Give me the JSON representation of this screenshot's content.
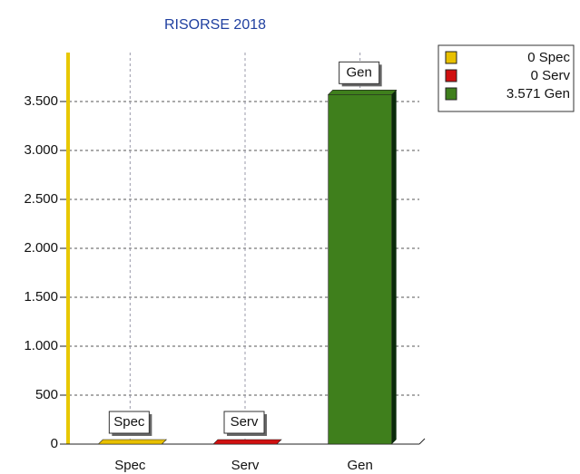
{
  "chart_data": {
    "type": "bar",
    "title": "RISORSE 2018",
    "categories": [
      "Spec",
      "Serv",
      "Gen"
    ],
    "values": [
      0,
      0,
      3571
    ],
    "value_labels": [
      "0",
      "0",
      "3.571"
    ],
    "colors": [
      "#e8c000",
      "#d01010",
      "#3f7f1c"
    ],
    "ylim": [
      0,
      4000
    ],
    "yticks": [
      0,
      500,
      {
        "value": 1000,
        "label": "1.000"
      },
      {
        "value": 1500,
        "label": "1.500"
      },
      {
        "value": 2000,
        "label": "2.000"
      },
      {
        "value": 2500,
        "label": "2.500"
      },
      {
        "value": 3000,
        "label": "3.000"
      },
      {
        "value": 3500,
        "label": "3.500"
      }
    ],
    "grid": true
  }
}
